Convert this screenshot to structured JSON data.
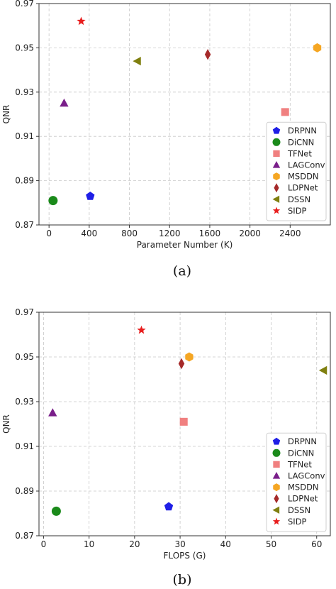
{
  "chart_data": [
    {
      "type": "scatter",
      "caption": "(a)",
      "xlabel": "Parameter Number (K)",
      "ylabel": "QNR",
      "xlim": [
        -100,
        2800
      ],
      "ylim": [
        0.87,
        0.97
      ],
      "xticks": [
        0,
        400,
        800,
        1200,
        1600,
        2000,
        2400
      ],
      "yticks": [
        0.87,
        0.89,
        0.91,
        0.93,
        0.95,
        0.97
      ],
      "grid": true,
      "legend_position": "lower-right",
      "series": [
        {
          "name": "DRPNN",
          "marker": "pentagon",
          "color": "#1f1fe6",
          "x": 410,
          "y": 0.883
        },
        {
          "name": "DiCNN",
          "marker": "circle",
          "color": "#1a8a1a",
          "x": 40,
          "y": 0.881
        },
        {
          "name": "TFNet",
          "marker": "square",
          "color": "#f08080",
          "x": 2350,
          "y": 0.921
        },
        {
          "name": "LAGConv",
          "marker": "triangle-up",
          "color": "#7a1f8a",
          "x": 150,
          "y": 0.925
        },
        {
          "name": "MSDDN",
          "marker": "hexagon",
          "color": "#f5a623",
          "x": 2670,
          "y": 0.95
        },
        {
          "name": "LDPNet",
          "marker": "diamond",
          "color": "#a52a2a",
          "x": 1580,
          "y": 0.947
        },
        {
          "name": "DSSN",
          "marker": "triangle-left",
          "color": "#7f7f0f",
          "x": 880,
          "y": 0.944
        },
        {
          "name": "SIDP",
          "marker": "star",
          "color": "#e81e1e",
          "x": 320,
          "y": 0.962
        }
      ]
    },
    {
      "type": "scatter",
      "caption": "(b)",
      "xlabel": "FLOPS (G)",
      "ylabel": "QNR",
      "xlim": [
        -1,
        63
      ],
      "ylim": [
        0.87,
        0.97
      ],
      "xticks": [
        0,
        10,
        20,
        30,
        40,
        50,
        60
      ],
      "yticks": [
        0.87,
        0.89,
        0.91,
        0.93,
        0.95,
        0.97
      ],
      "grid": true,
      "legend_position": "lower-right",
      "series": [
        {
          "name": "DRPNN",
          "marker": "pentagon",
          "color": "#1f1fe6",
          "x": 27.5,
          "y": 0.883
        },
        {
          "name": "DiCNN",
          "marker": "circle",
          "color": "#1a8a1a",
          "x": 2.8,
          "y": 0.881
        },
        {
          "name": "TFNet",
          "marker": "square",
          "color": "#f08080",
          "x": 30.8,
          "y": 0.921
        },
        {
          "name": "LAGConv",
          "marker": "triangle-up",
          "color": "#7a1f8a",
          "x": 2.0,
          "y": 0.925
        },
        {
          "name": "MSDDN",
          "marker": "hexagon",
          "color": "#f5a623",
          "x": 32.0,
          "y": 0.95
        },
        {
          "name": "LDPNet",
          "marker": "diamond",
          "color": "#a52a2a",
          "x": 30.3,
          "y": 0.947
        },
        {
          "name": "DSSN",
          "marker": "triangle-left",
          "color": "#7f7f0f",
          "x": 61.5,
          "y": 0.944
        },
        {
          "name": "SIDP",
          "marker": "star",
          "color": "#e81e1e",
          "x": 21.5,
          "y": 0.962
        }
      ]
    }
  ]
}
